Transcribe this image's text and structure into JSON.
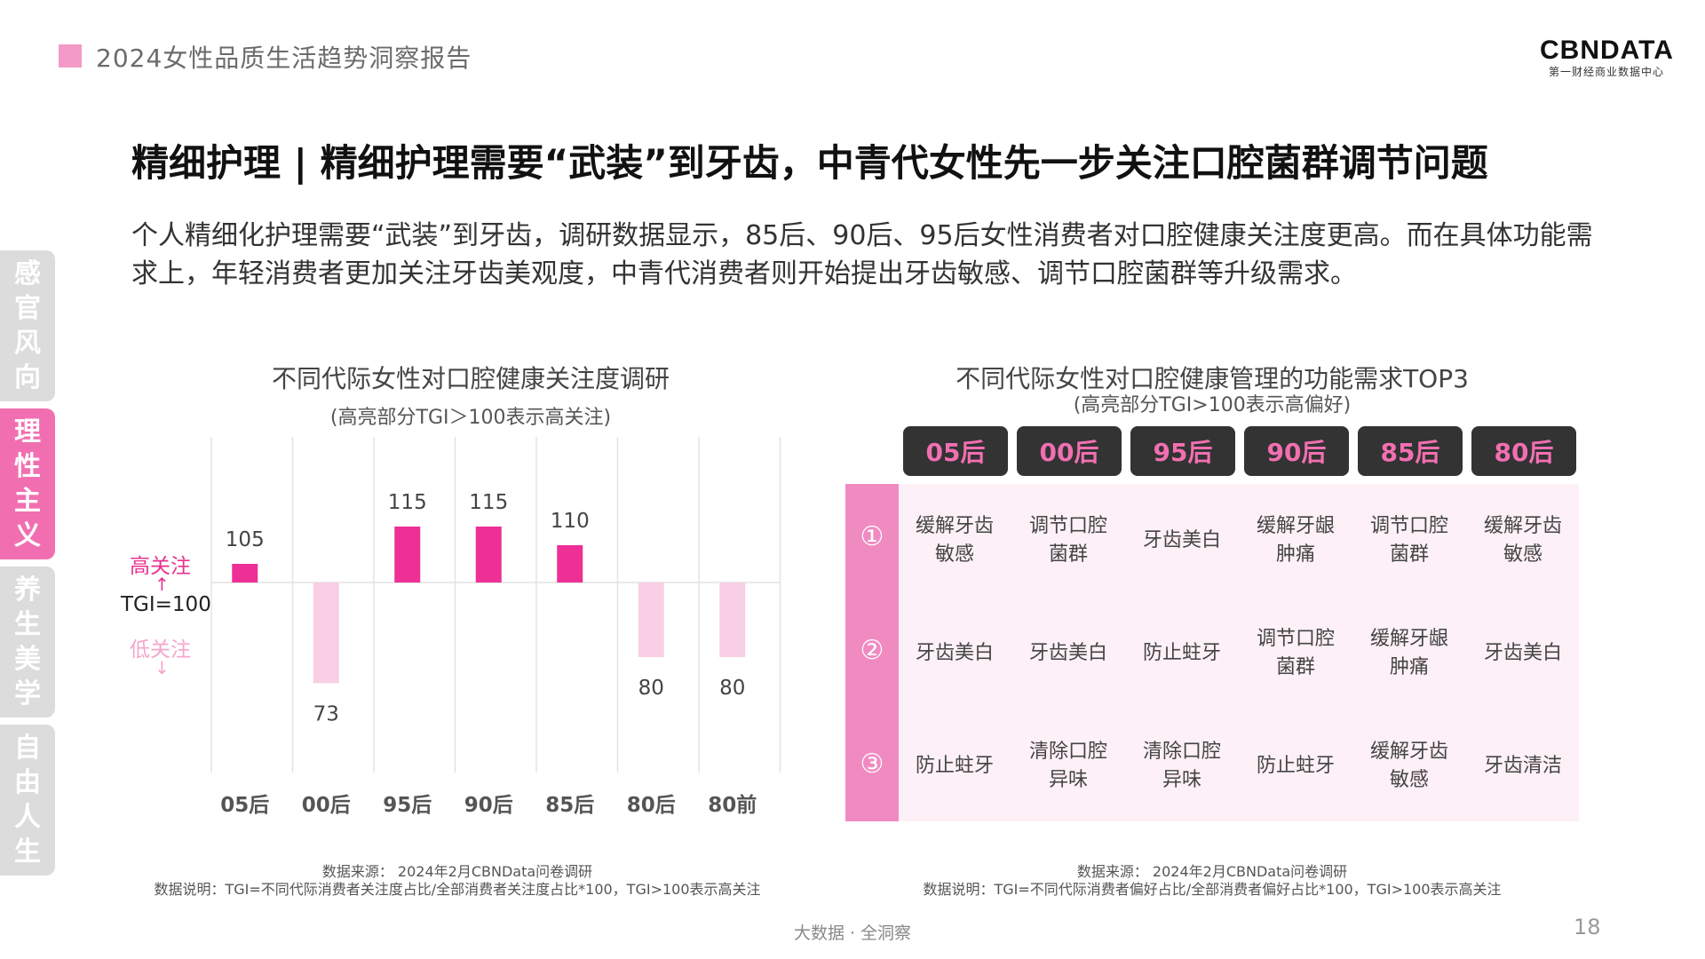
{
  "header": {
    "title": "2024女性品质生活趋势洞察报告"
  },
  "logo": {
    "main": "CBNDATA",
    "sub": "第一财经商业数据中心"
  },
  "headline": "精细护理 | 精细护理需要“武装”到牙齿，中青代女性先一步关注口腔菌群调节问题",
  "summary": "个人精细化护理需要“武装”到牙齿，调研数据显示，85后、90后、95后女性消费者对口腔健康关注度更高。而在具体功能需求上，年轻消费者更加关注牙齿美观度，中青代消费者则开始提出牙齿敏感、调节口腔菌群等升级需求。",
  "side_tabs": [
    {
      "label": "感官风向",
      "active": false
    },
    {
      "label": "理性主义",
      "active": true
    },
    {
      "label": "养生美学",
      "active": false
    },
    {
      "label": "自由人生",
      "active": false
    }
  ],
  "left_chart": {
    "title": "不同代际女性对口腔健康关注度调研",
    "subtitle": "(高亮部分TGI＞100表示高关注)",
    "high_label": "高关注",
    "baseline_label": "TGI=100",
    "low_label": "低关注",
    "up_arrow": "↑",
    "down_arrow": "↓",
    "source": "数据来源： 2024年2月CBNData问卷调研",
    "note": "数据说明：TGI=不同代际消费者关注度占比/全部消费者关注度占比*100，TGI>100表示高关注"
  },
  "chart_data": {
    "type": "bar",
    "baseline": 100,
    "categories": [
      "05后",
      "00后",
      "95后",
      "90后",
      "85后",
      "80后",
      "80前"
    ],
    "values": [
      105,
      73,
      115,
      115,
      110,
      80,
      80
    ],
    "colors": {
      "high": "#ee2f95",
      "low": "#f9cfe5"
    }
  },
  "right_table": {
    "title": "不同代际女性对口腔健康管理的功能需求TOP3",
    "subtitle": "(高亮部分TGI>100表示高偏好)",
    "columns": [
      "05后",
      "00后",
      "95后",
      "90后",
      "85后",
      "80后"
    ],
    "ranks": [
      "①",
      "②",
      "③"
    ],
    "rows": [
      [
        "缓解牙齿\n敏感",
        "调节口腔\n菌群",
        "牙齿美白",
        "缓解牙龈\n肿痛",
        "调节口腔\n菌群",
        "缓解牙齿\n敏感"
      ],
      [
        "牙齿美白",
        "牙齿美白",
        "防止蛀牙",
        "调节口腔\n菌群",
        "缓解牙龈\n肿痛",
        "牙齿美白"
      ],
      [
        "防止蛀牙",
        "清除口腔\n异味",
        "清除口腔\n异味",
        "防止蛀牙",
        "缓解牙齿\n敏感",
        "牙齿清洁"
      ]
    ],
    "source": "数据来源： 2024年2月CBNData问卷调研",
    "note": "数据说明：TGI=不同代际消费者偏好占比/全部消费者偏好占比*100，TGI>100表示高关注"
  },
  "footer": {
    "center": "大数据 · 全洞察",
    "page": "18"
  },
  "colors": {
    "accent": "#f16fb0",
    "bar_high": "#ee2f95",
    "bar_low": "#f9cfe5",
    "dark_badge": "#333333"
  }
}
